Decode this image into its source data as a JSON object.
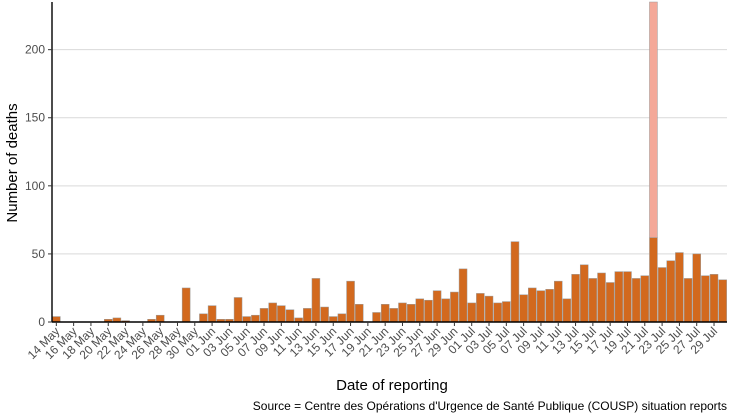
{
  "chart_data": {
    "type": "bar",
    "stacked": true,
    "xlabel": "Date of reporting",
    "ylabel": "Number of deaths",
    "caption": "Source = Centre des Opérations d'Urgence de Santé Publique (COUSP) situation reports",
    "ylim": [
      0,
      235
    ],
    "yticks": [
      0,
      50,
      100,
      150,
      200
    ],
    "grid": true,
    "legend": "none",
    "x": [
      "14 May",
      "15 May",
      "16 May",
      "17 May",
      "18 May",
      "19 May",
      "20 May",
      "21 May",
      "22 May",
      "23 May",
      "24 May",
      "25 May",
      "26 May",
      "27 May",
      "28 May",
      "29 May",
      "30 May",
      "31 May",
      "01 Jun",
      "02 Jun",
      "03 Jun",
      "04 Jun",
      "05 Jun",
      "06 Jun",
      "07 Jun",
      "08 Jun",
      "09 Jun",
      "10 Jun",
      "11 Jun",
      "12 Jun",
      "13 Jun",
      "14 Jun",
      "15 Jun",
      "16 Jun",
      "17 Jun",
      "18 Jun",
      "19 Jun",
      "20 Jun",
      "21 Jun",
      "22 Jun",
      "23 Jun",
      "24 Jun",
      "25 Jun",
      "26 Jun",
      "27 Jun",
      "28 Jun",
      "29 Jun",
      "30 Jun",
      "01 Jul",
      "02 Jul",
      "03 Jul",
      "04 Jul",
      "05 Jul",
      "06 Jul",
      "07 Jul",
      "08 Jul",
      "09 Jul",
      "10 Jul",
      "11 Jul",
      "12 Jul",
      "13 Jul",
      "14 Jul",
      "15 Jul",
      "16 Jul",
      "17 Jul",
      "18 Jul",
      "19 Jul",
      "20 Jul",
      "21 Jul",
      "22 Jul",
      "23 Jul",
      "24 Jul",
      "25 Jul",
      "26 Jul",
      "27 Jul",
      "28 Jul",
      "29 Jul",
      "30 Jul"
    ],
    "tick_labels": [
      "14 May",
      "16 May",
      "18 May",
      "20 May",
      "22 May",
      "24 May",
      "26 May",
      "28 May",
      "30 May",
      "01 Jun",
      "03 Jun",
      "05 Jun",
      "07 Jun",
      "09 Jun",
      "11 Jun",
      "13 Jun",
      "15 Jun",
      "17 Jun",
      "19 Jun",
      "21 Jun",
      "23 Jun",
      "25 Jun",
      "27 Jun",
      "29 Jun",
      "01 Jul",
      "03 Jul",
      "05 Jul",
      "07 Jul",
      "09 Jul",
      "11 Jul",
      "13 Jul",
      "15 Jul",
      "17 Jul",
      "19 Jul",
      "21 Jul",
      "23 Jul",
      "25 Jul",
      "27 Jul",
      "29 Jul"
    ],
    "series": [
      {
        "color": "#d2691e",
        "values": [
          4,
          0,
          0,
          0,
          0,
          0,
          2,
          3,
          1,
          0,
          0,
          2,
          5,
          0,
          0,
          25,
          0,
          6,
          12,
          2,
          2,
          18,
          4,
          5,
          10,
          14,
          12,
          9,
          3,
          10,
          32,
          11,
          4,
          6,
          30,
          13,
          0,
          7,
          13,
          10,
          14,
          13,
          17,
          16,
          23,
          17,
          22,
          39,
          14,
          21,
          19,
          14,
          15,
          59,
          20,
          25,
          23,
          24,
          30,
          17,
          35,
          42,
          32,
          36,
          29,
          37,
          37,
          32,
          34,
          62,
          40,
          45,
          51,
          32,
          50,
          34,
          35,
          31
        ]
      },
      {
        "color": "#f4a898",
        "values": [
          0,
          0,
          0,
          0,
          0,
          0,
          0,
          0,
          0,
          0,
          0,
          0,
          0,
          0,
          0,
          0,
          0,
          0,
          0,
          0,
          0,
          0,
          0,
          0,
          0,
          0,
          0,
          0,
          0,
          0,
          0,
          0,
          0,
          0,
          0,
          0,
          0,
          0,
          0,
          0,
          0,
          0,
          0,
          0,
          0,
          0,
          0,
          0,
          0,
          0,
          0,
          0,
          0,
          0,
          0,
          0,
          0,
          0,
          0,
          0,
          0,
          0,
          0,
          0,
          0,
          0,
          0,
          0,
          0,
          173,
          0,
          0,
          0,
          0,
          0,
          0,
          0,
          0
        ]
      }
    ]
  }
}
